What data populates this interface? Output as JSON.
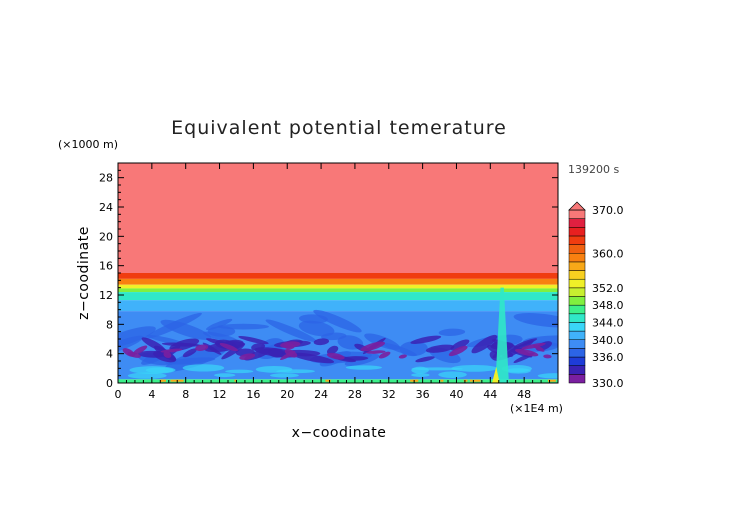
{
  "chart_data": {
    "type": "heatmap",
    "title": "Equivalent potential temerature",
    "xlabel": "x−coodinate",
    "ylabel": "z−coodinate",
    "x_unit": "(×1E4 m)",
    "y_unit": "(×1000 m)",
    "time_label": "139200 s",
    "xlim": [
      0,
      52
    ],
    "ylim": [
      0,
      30
    ],
    "x_ticks": [
      "0",
      "4",
      "8",
      "12",
      "16",
      "20",
      "24",
      "28",
      "32",
      "36",
      "40",
      "44",
      "48"
    ],
    "y_ticks": [
      "0",
      "4",
      "8",
      "12",
      "16",
      "20",
      "24",
      "28"
    ],
    "x_tick_values": [
      0,
      4,
      8,
      12,
      16,
      20,
      24,
      28,
      32,
      36,
      40,
      44,
      48
    ],
    "y_tick_values": [
      0,
      4,
      8,
      12,
      16,
      20,
      24,
      28
    ],
    "colorbar": {
      "min": 330,
      "max": 370,
      "extend": "max",
      "levels": [
        330,
        332,
        334,
        336,
        338,
        340,
        342,
        344,
        346,
        348,
        350,
        352,
        354,
        356,
        358,
        360,
        362,
        364,
        366,
        368,
        370
      ],
      "colors": [
        "#7a1fa0",
        "#3a22b4",
        "#1e3cd8",
        "#2c64e6",
        "#3e8cf4",
        "#40b2fa",
        "#3ad6f8",
        "#30e8c8",
        "#3cf08a",
        "#80f040",
        "#c8f030",
        "#f0f028",
        "#f8d020",
        "#f8a818",
        "#f88010",
        "#f06010",
        "#f03c10",
        "#e82020",
        "#e02040",
        "#f87878"
      ],
      "labels": [
        "330.0",
        "336.0",
        "340.0",
        "344.0",
        "348.0",
        "352.0",
        "360.0",
        "370.0"
      ]
    },
    "layers": [
      {
        "z_from": 15.0,
        "z_to": 30.0,
        "value": 370
      },
      {
        "z_from": 14.2,
        "z_to": 15.0,
        "value": 362
      },
      {
        "z_from": 13.4,
        "z_to": 14.2,
        "value": 358
      },
      {
        "z_from": 12.9,
        "z_to": 13.4,
        "value": 353
      },
      {
        "z_from": 12.4,
        "z_to": 12.9,
        "value": 348
      },
      {
        "z_from": 11.3,
        "z_to": 12.4,
        "value": 344
      },
      {
        "z_from": 9.8,
        "z_to": 11.3,
        "value": 341
      },
      {
        "z_from": 0.5,
        "z_to": 9.8,
        "value": 339
      },
      {
        "z_from": 0.0,
        "z_to": 0.5,
        "value": 346
      }
    ]
  },
  "colors": {
    "axis": "#000000",
    "background": "#ffffff"
  }
}
